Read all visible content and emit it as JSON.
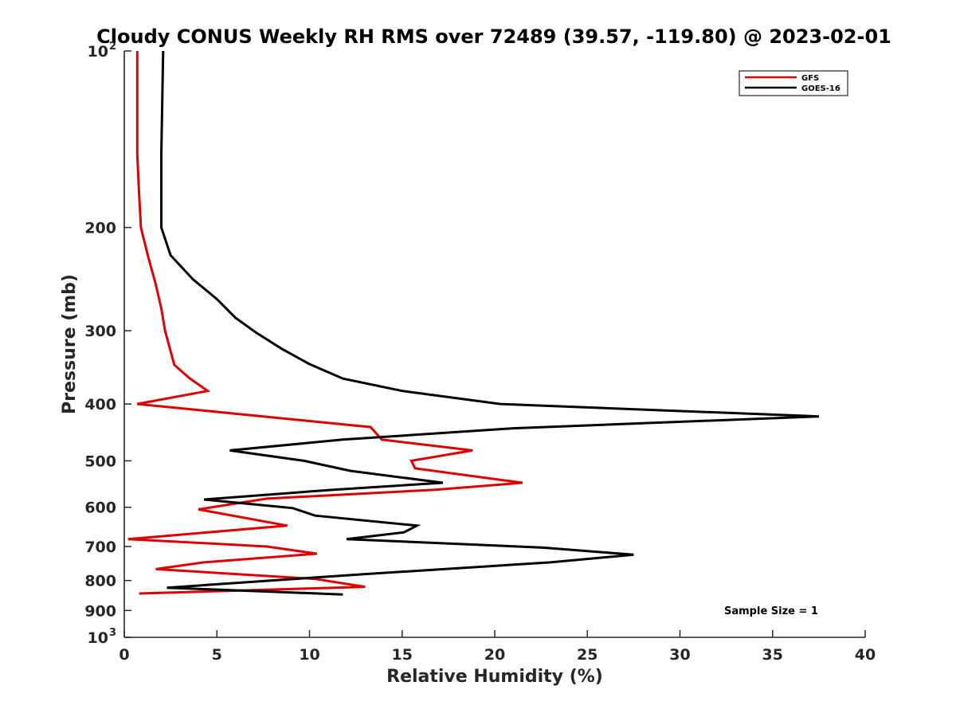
{
  "chart_data": {
    "type": "line",
    "title": "Cloudy CONUS Weekly RH RMS over 72489 (39.57, -119.80) @ 2023-02-01",
    "xlabel": "Relative Humidity (%)",
    "ylabel": "Pressure (mb)",
    "xlim": [
      0,
      40
    ],
    "ylim": [
      100,
      1000
    ],
    "y_scale": "log",
    "y_reversed": true,
    "x_ticks": [
      "0",
      "5",
      "10",
      "15",
      "20",
      "25",
      "30",
      "35",
      "40"
    ],
    "y_ticks": [
      {
        "value": 100,
        "base": "10",
        "exp": "2"
      },
      {
        "value": 200,
        "label": "200"
      },
      {
        "value": 300,
        "label": "300"
      },
      {
        "value": 400,
        "label": "400"
      },
      {
        "value": 500,
        "label": "500"
      },
      {
        "value": 600,
        "label": "600"
      },
      {
        "value": 700,
        "label": "700"
      },
      {
        "value": 800,
        "label": "800"
      },
      {
        "value": 900,
        "label": "900"
      },
      {
        "value": 1000,
        "base": "10",
        "exp": "3"
      }
    ],
    "grid": false,
    "legend_position": "top-right",
    "annotation": "Sample Size = 1",
    "series": [
      {
        "name": "GFS",
        "color": "#e00000",
        "points": [
          {
            "x": 0.7,
            "y": 100
          },
          {
            "x": 0.7,
            "y": 150
          },
          {
            "x": 0.8,
            "y": 175
          },
          {
            "x": 0.9,
            "y": 200
          },
          {
            "x": 1.3,
            "y": 225
          },
          {
            "x": 1.7,
            "y": 250
          },
          {
            "x": 2.0,
            "y": 275
          },
          {
            "x": 2.2,
            "y": 300
          },
          {
            "x": 2.7,
            "y": 343
          },
          {
            "x": 3.5,
            "y": 361
          },
          {
            "x": 4.5,
            "y": 380
          },
          {
            "x": 0.7,
            "y": 400
          },
          {
            "x": 13.3,
            "y": 438
          },
          {
            "x": 13.9,
            "y": 460
          },
          {
            "x": 18.8,
            "y": 480
          },
          {
            "x": 15.5,
            "y": 500
          },
          {
            "x": 15.7,
            "y": 515
          },
          {
            "x": 21.5,
            "y": 545
          },
          {
            "x": 16.8,
            "y": 560
          },
          {
            "x": 7.7,
            "y": 580
          },
          {
            "x": 4.0,
            "y": 605
          },
          {
            "x": 8.8,
            "y": 645
          },
          {
            "x": 0.2,
            "y": 680
          },
          {
            "x": 7.7,
            "y": 700
          },
          {
            "x": 10.4,
            "y": 720
          },
          {
            "x": 4.3,
            "y": 745
          },
          {
            "x": 1.7,
            "y": 765
          },
          {
            "x": 10.3,
            "y": 795
          },
          {
            "x": 13.0,
            "y": 820
          },
          {
            "x": 0.8,
            "y": 842
          }
        ]
      },
      {
        "name": "GOES-16",
        "color": "#000000",
        "points": [
          {
            "x": 2.1,
            "y": 100
          },
          {
            "x": 2.0,
            "y": 150
          },
          {
            "x": 2.0,
            "y": 200
          },
          {
            "x": 2.5,
            "y": 223
          },
          {
            "x": 3.7,
            "y": 245
          },
          {
            "x": 5.0,
            "y": 265
          },
          {
            "x": 6.0,
            "y": 285
          },
          {
            "x": 7.1,
            "y": 302
          },
          {
            "x": 8.5,
            "y": 322
          },
          {
            "x": 10.0,
            "y": 342
          },
          {
            "x": 11.8,
            "y": 362
          },
          {
            "x": 15.0,
            "y": 380
          },
          {
            "x": 20.3,
            "y": 400
          },
          {
            "x": 37.5,
            "y": 420
          },
          {
            "x": 21.0,
            "y": 440
          },
          {
            "x": 11.8,
            "y": 460
          },
          {
            "x": 5.7,
            "y": 480
          },
          {
            "x": 9.7,
            "y": 500
          },
          {
            "x": 12.2,
            "y": 520
          },
          {
            "x": 17.2,
            "y": 545
          },
          {
            "x": 11.3,
            "y": 560
          },
          {
            "x": 4.3,
            "y": 582
          },
          {
            "x": 9.1,
            "y": 602
          },
          {
            "x": 10.3,
            "y": 620
          },
          {
            "x": 15.8,
            "y": 645
          },
          {
            "x": 15.1,
            "y": 662
          },
          {
            "x": 12.0,
            "y": 680
          },
          {
            "x": 22.6,
            "y": 703
          },
          {
            "x": 27.5,
            "y": 723
          },
          {
            "x": 23.0,
            "y": 745
          },
          {
            "x": 13.0,
            "y": 780
          },
          {
            "x": 2.3,
            "y": 823
          },
          {
            "x": 11.8,
            "y": 845
          }
        ]
      }
    ]
  }
}
